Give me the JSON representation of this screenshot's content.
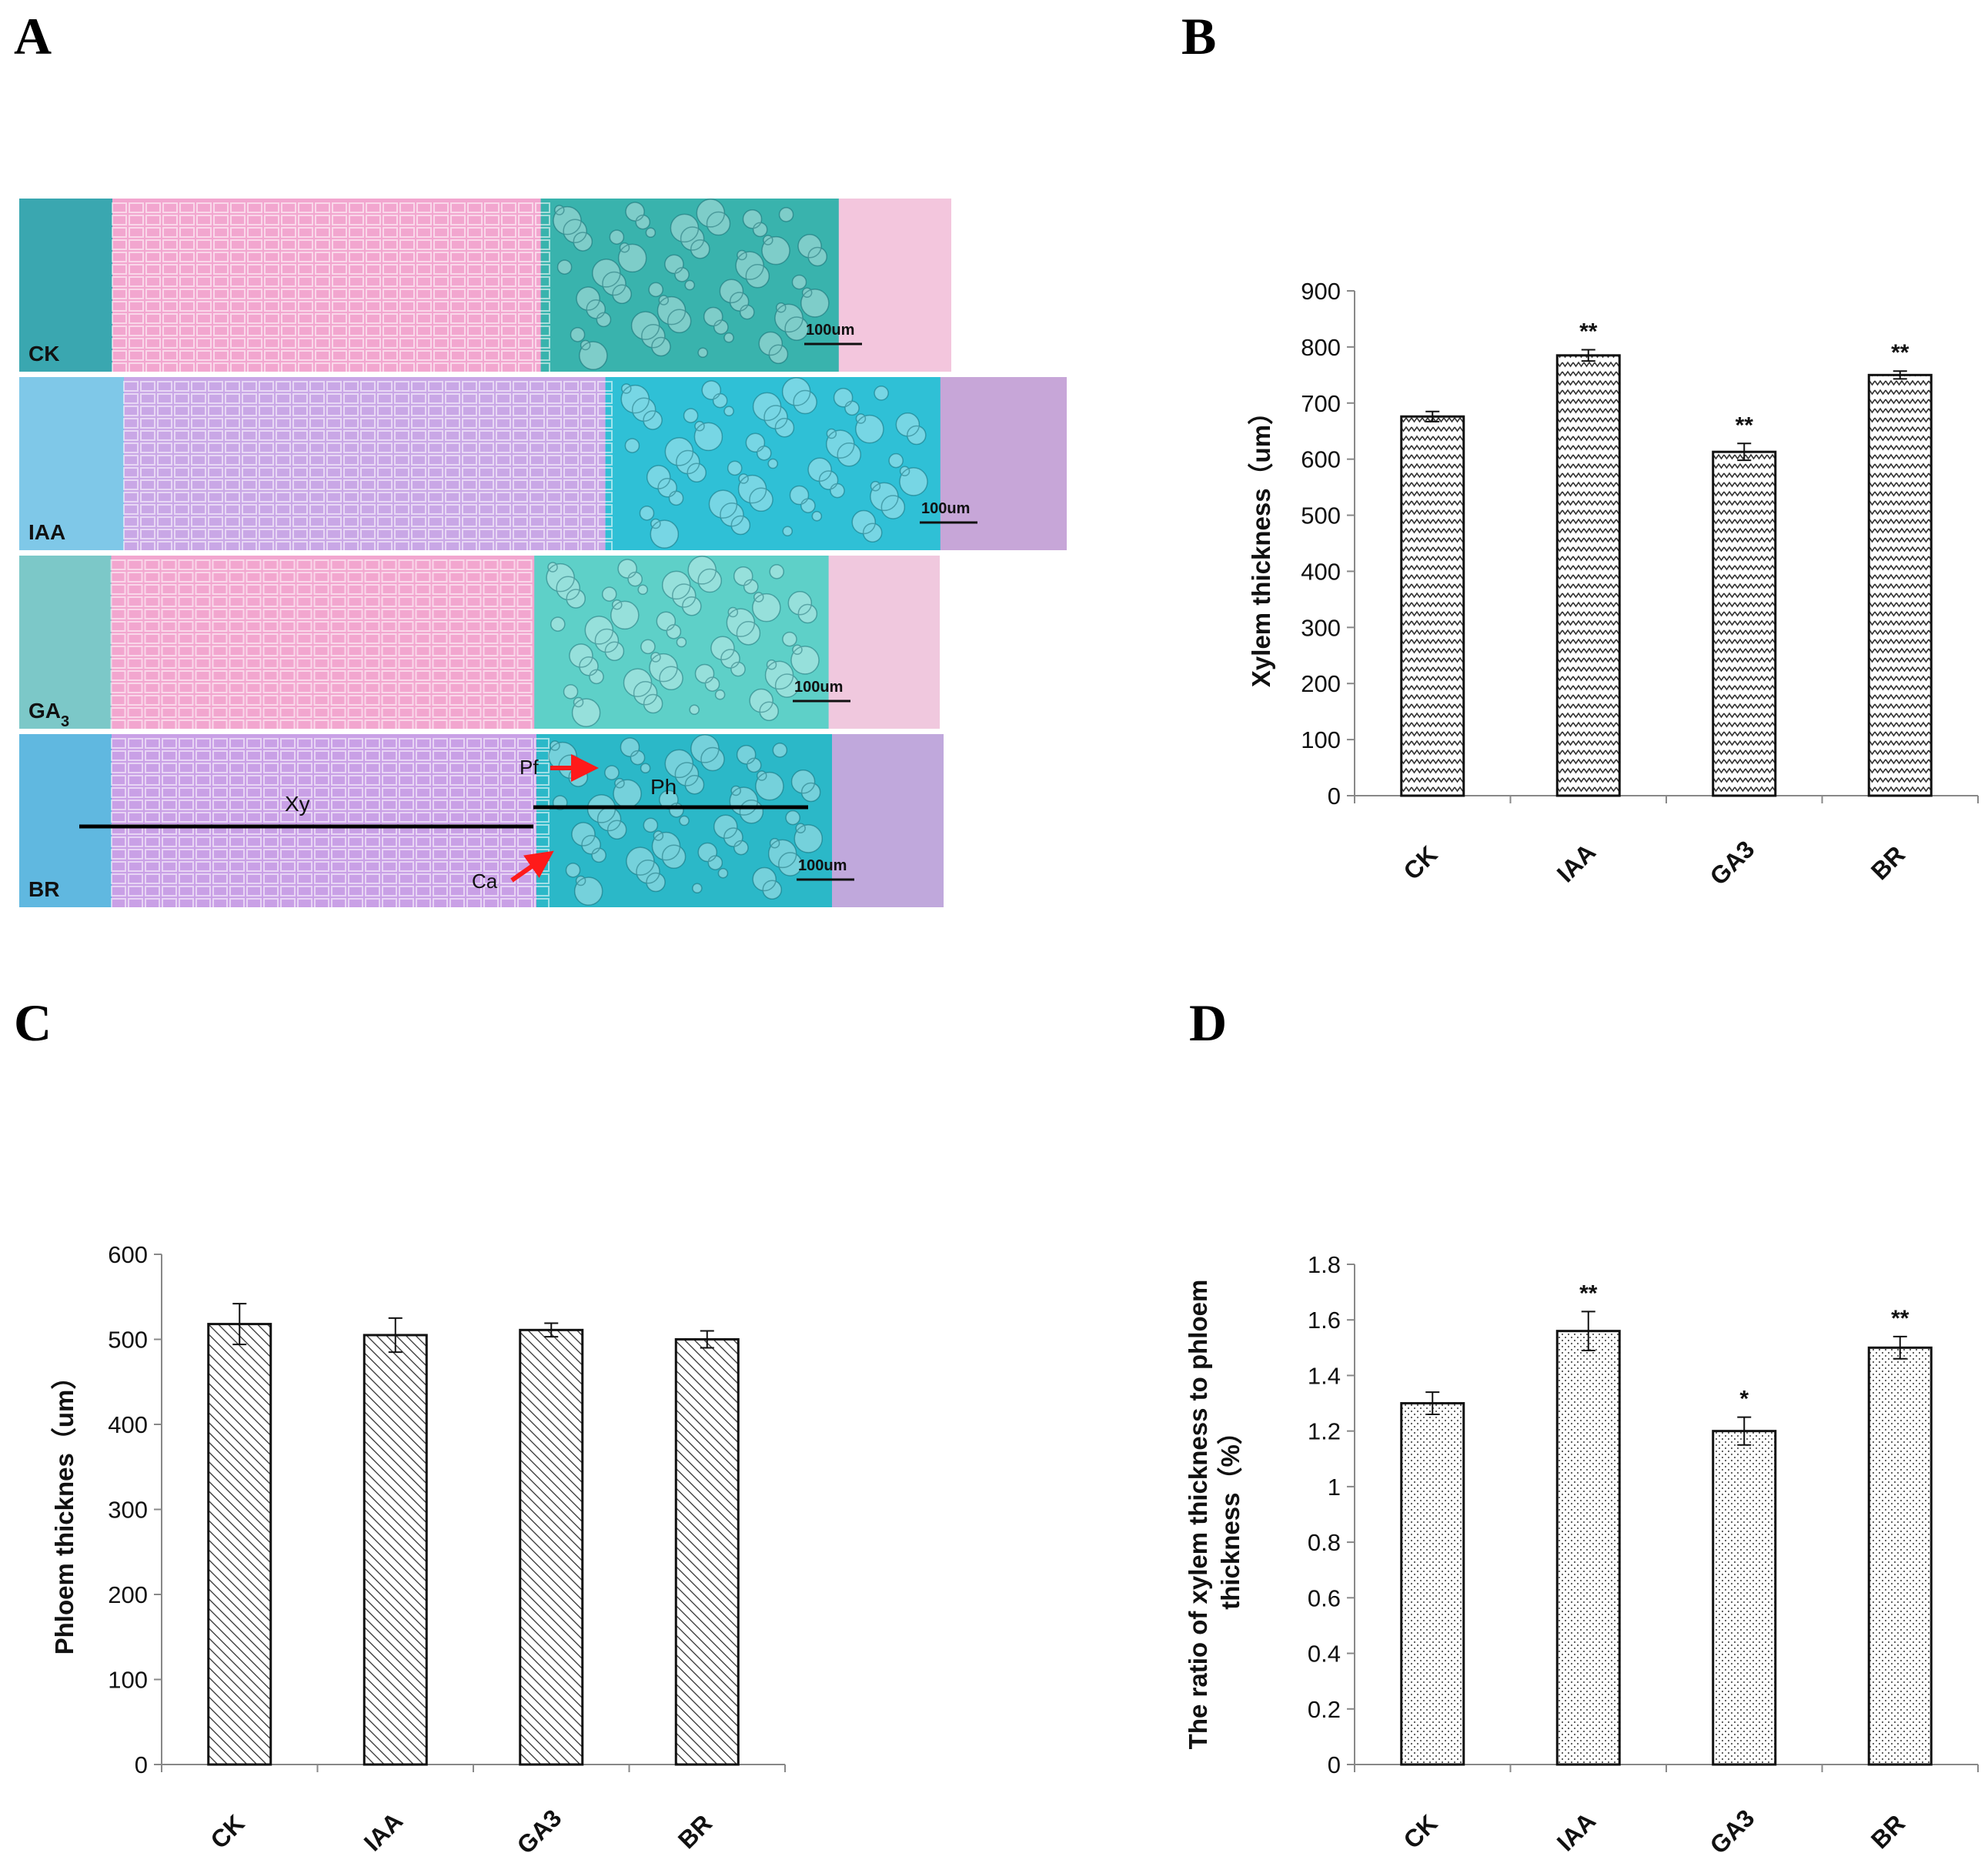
{
  "panels": {
    "a": "A",
    "b": "B",
    "c": "C",
    "d": "D"
  },
  "micrograph": {
    "strips": [
      {
        "name": "CK",
        "sub": "",
        "scale": "100um",
        "palette": [
          "#3aa7b0",
          "#f2a6cf",
          "#39b3ad",
          "#f3c6dd"
        ]
      },
      {
        "name": "IAA",
        "sub": "",
        "scale": "100um",
        "palette": [
          "#7fc8e8",
          "#c9a7e6",
          "#2fc0d6",
          "#c7a6d8"
        ]
      },
      {
        "name": "GA",
        "sub": "3",
        "scale": "100um",
        "palette": [
          "#7cc8c8",
          "#f2a6cf",
          "#5ed0c8",
          "#f0c8de"
        ]
      },
      {
        "name": "BR",
        "sub": "",
        "scale": "100um",
        "palette": [
          "#60b8e0",
          "#c9a0e6",
          "#2bb8c8",
          "#c0a8dc"
        ]
      }
    ],
    "annotations": {
      "xy": "Xy",
      "ph": "Ph",
      "pf": "Pf",
      "ca": "Ca"
    },
    "colors": {
      "arrow": "#ff1a1a",
      "line": "#000000"
    }
  },
  "chart_data": [
    {
      "id": "B",
      "type": "bar",
      "title": "",
      "xlabel": "",
      "ylabel": "Xylem thickness（um）",
      "categories": [
        "CK",
        "IAA",
        "GA3",
        "BR"
      ],
      "values": [
        676,
        785,
        613,
        750
      ],
      "errors": [
        9,
        10,
        15,
        7
      ],
      "significance": [
        "",
        "**",
        "**",
        "**"
      ],
      "ylim": [
        0,
        900
      ],
      "yticks": [
        "0",
        "100",
        "200",
        "300",
        "400",
        "500",
        "600",
        "700",
        "800",
        "900"
      ],
      "pattern": "zigzag"
    },
    {
      "id": "C",
      "type": "bar",
      "title": "",
      "xlabel": "",
      "ylabel": "Phloem thicknes（um）",
      "categories": [
        "CK",
        "IAA",
        "GA3",
        "BR"
      ],
      "values": [
        518,
        505,
        511,
        500
      ],
      "errors": [
        24,
        20,
        8,
        10
      ],
      "significance": [
        "",
        "",
        "",
        ""
      ],
      "ylim": [
        0,
        600
      ],
      "yticks": [
        "0",
        "100",
        "200",
        "300",
        "400",
        "500",
        "600"
      ],
      "pattern": "diagonal"
    },
    {
      "id": "D",
      "type": "bar",
      "title": "",
      "xlabel": "",
      "ylabel_lines": [
        "The ratio of xylem thickness to phloem",
        "thickness（%）"
      ],
      "categories": [
        "CK",
        "IAA",
        "GA3",
        "BR"
      ],
      "values": [
        1.3,
        1.56,
        1.2,
        1.5
      ],
      "errors": [
        0.04,
        0.07,
        0.05,
        0.04
      ],
      "significance": [
        "",
        "**",
        "*",
        "**"
      ],
      "ylim": [
        0,
        1.8
      ],
      "yticks": [
        "0",
        "0.2",
        "0.4",
        "0.6",
        "0.8",
        "1",
        "1.2",
        "1.4",
        "1.6",
        "1.8"
      ],
      "pattern": "dots"
    }
  ]
}
